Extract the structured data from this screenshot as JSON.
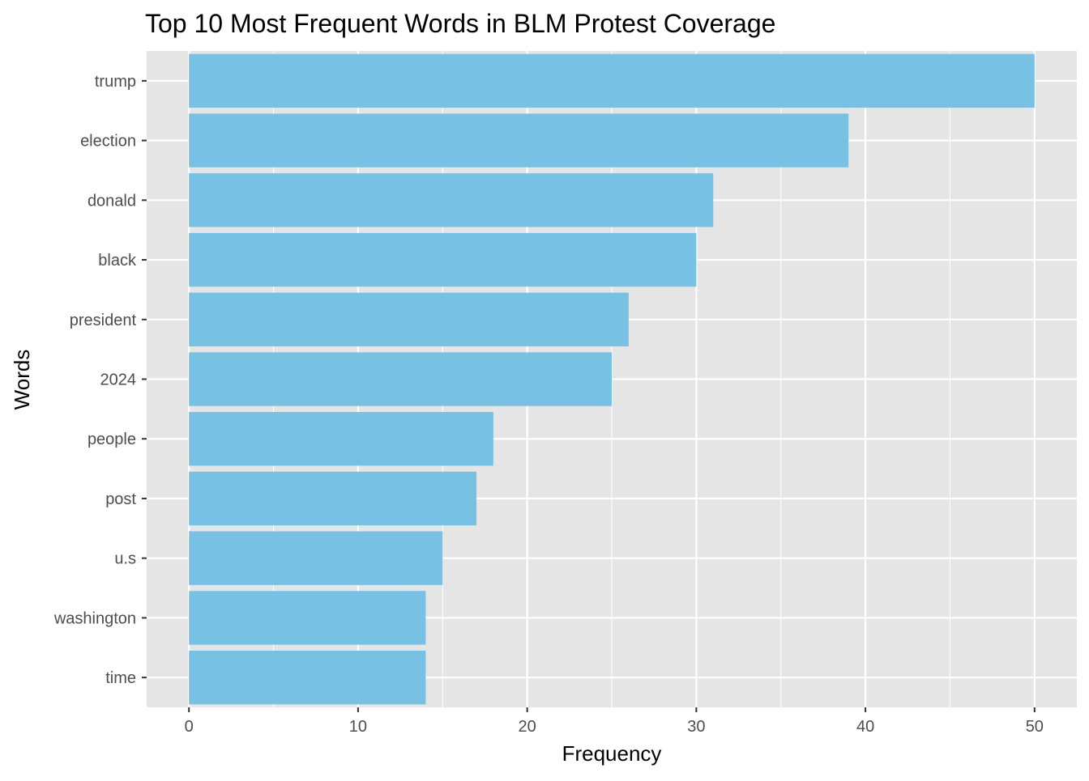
{
  "chart_data": {
    "type": "bar",
    "orientation": "horizontal",
    "title": "Top 10 Most Frequent Words in BLM Protest Coverage",
    "xlabel": "Frequency",
    "ylabel": "Words",
    "categories": [
      "trump",
      "election",
      "donald",
      "black",
      "president",
      "2024",
      "people",
      "post",
      "u.s",
      "washington",
      "time"
    ],
    "values": [
      50,
      39,
      31,
      30,
      26,
      25,
      18,
      17,
      15,
      14,
      14
    ],
    "xlim": [
      -2.5,
      52.5
    ],
    "x_ticks": [
      0,
      10,
      20,
      30,
      40,
      50
    ],
    "x_tick_labels": [
      "0",
      "10",
      "20",
      "30",
      "40",
      "50"
    ],
    "grid": true,
    "colors": {
      "bar": "#77C1E4",
      "panel_background": "#E5E5E5",
      "grid": "#FFFFFF",
      "tick_text": "#4D4D4D",
      "tick_mark": "#333333"
    }
  }
}
